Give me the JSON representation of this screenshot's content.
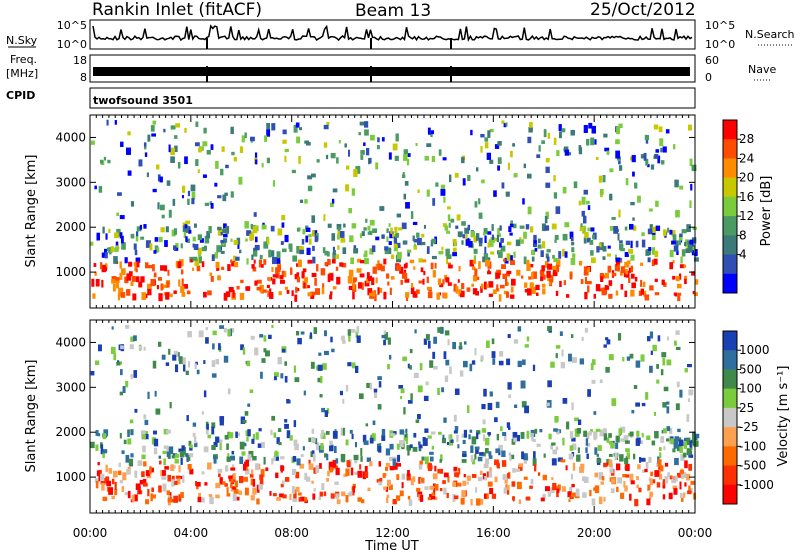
{
  "header": {
    "station": "Rankin Inlet (fitACF)",
    "beam": "Beam 13",
    "date": "25/Oct/2012"
  },
  "strips": {
    "nsky": {
      "label": "N.Sky",
      "ticks_left": [
        "10^5",
        "10^0"
      ],
      "ticks_right": [
        "10^5",
        "10^0"
      ],
      "right_label": "N.Search"
    },
    "freq": {
      "label": "Freq.",
      "unit": "[MHz]",
      "ticks_left": [
        "18",
        "8"
      ],
      "ticks_right": [
        "60",
        "0"
      ],
      "right_label": "Nave"
    },
    "cpid": {
      "label": "CPID",
      "value": "twofsound 3501"
    }
  },
  "chart_data": [
    {
      "type": "heatmap",
      "name": "power-panel",
      "ylabel": "Slant Range [km]",
      "yticks": [
        1000,
        2000,
        3000,
        4000
      ],
      "ylim": [
        200,
        4500
      ],
      "xlim": [
        "00:00",
        "24:00"
      ],
      "colorbar": {
        "label": "Power [dB]",
        "ticks": [
          "28",
          "24",
          "20",
          "16",
          "12",
          "8",
          "4"
        ],
        "colors": [
          "#ff0000",
          "#ff4c00",
          "#ff8c00",
          "#c8c800",
          "#7acc3c",
          "#4a9a64",
          "#3c7a7a",
          "#2f4fb5",
          "#0000ff"
        ]
      }
    },
    {
      "type": "heatmap",
      "name": "velocity-panel",
      "ylabel": "Slant Range [km]",
      "yticks": [
        1000,
        2000,
        3000,
        4000
      ],
      "ylim": [
        200,
        4500
      ],
      "xlim": [
        "00:00",
        "24:00"
      ],
      "xticks": [
        "00:00",
        "04:00",
        "08:00",
        "12:00",
        "16:00",
        "20:00",
        "00:00"
      ],
      "xlabel": "Time UT",
      "colorbar": {
        "label": "Velocity [m s⁻¹]",
        "ticks": [
          "1000",
          "500",
          "100",
          "25",
          "-25",
          "-100",
          "-500",
          "-1000"
        ],
        "colors": [
          "#1a3fb5",
          "#2f6fa0",
          "#3f8a4a",
          "#7acc3c",
          "#c8c8c8",
          "#ffa050",
          "#ff6a00",
          "#ff3000",
          "#ff0000"
        ]
      }
    }
  ]
}
